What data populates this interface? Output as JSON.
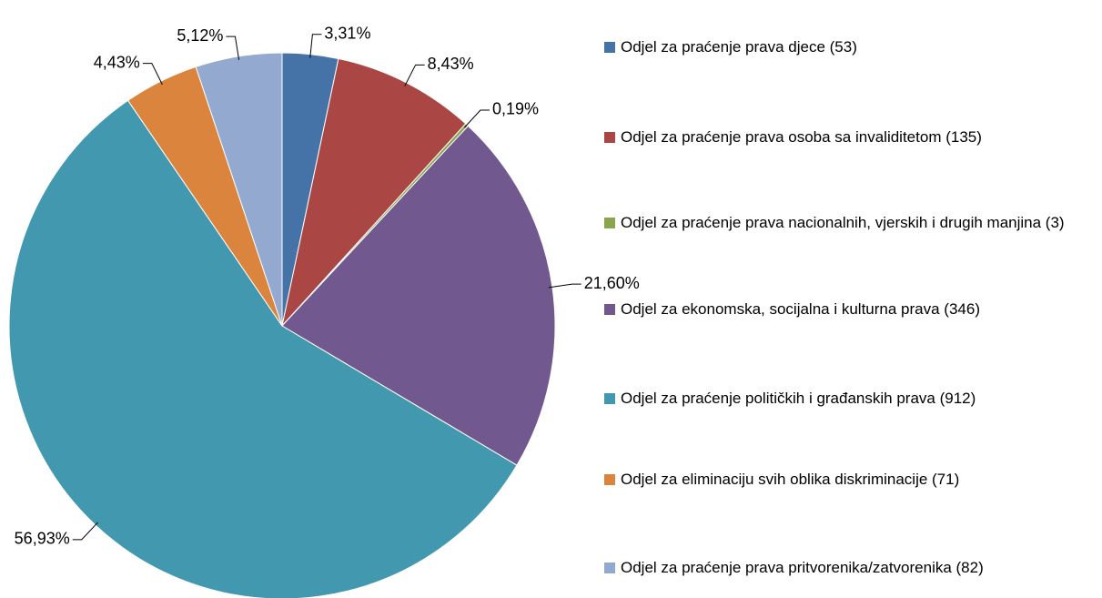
{
  "chart_data": {
    "type": "pie",
    "categories": [
      "Odjel za praćenje prava djece (53)",
      "Odjel za praćenje prava osoba sa invaliditetom (135)",
      "Odjel za praćenje prava nacionalnih, vjerskih i drugih manjina (3)",
      "Odjel za ekonomska, socijalna i kulturna prava (346)",
      "Odjel za praćenje političkih i građanskih prava (912)",
      "Odjel za eliminaciju svih oblika diskriminacije (71)",
      "Odjel za praćenje prava pritvorenika/zatvorenika (82)"
    ],
    "values": [
      3.31,
      8.43,
      0.19,
      21.6,
      56.93,
      4.43,
      5.12
    ],
    "value_labels": [
      "3,31%",
      "8,43%",
      "0,19%",
      "21,60%",
      "56,93%",
      "4,43%",
      "5,12%"
    ],
    "colors": [
      "#4572a7",
      "#aa4643",
      "#89a54e",
      "#71588f",
      "#4198af",
      "#db843d",
      "#93a9cf"
    ],
    "legend": "right"
  }
}
